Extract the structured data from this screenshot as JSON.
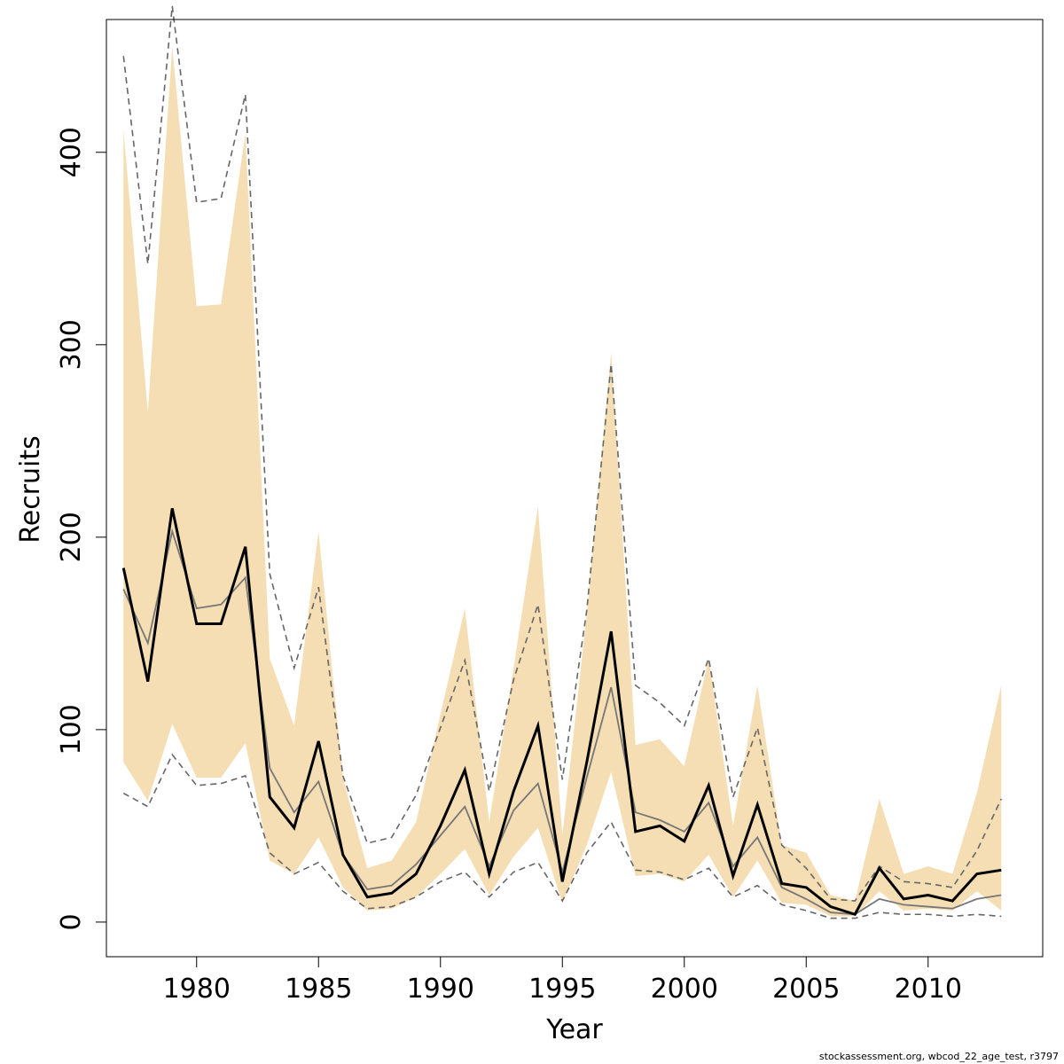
{
  "chart_data": {
    "type": "line",
    "title": "",
    "xlabel": "Year",
    "ylabel": "Recruits",
    "xlim": [
      1976.3,
      2014.7
    ],
    "ylim": [
      -18,
      469
    ],
    "x_ticks": [
      1980,
      1985,
      1990,
      1995,
      2000,
      2005,
      2010
    ],
    "y_ticks": [
      0,
      100,
      200,
      300,
      400
    ],
    "colors": {
      "band": "#f5deb3",
      "main": "#000000",
      "alt": "#777777",
      "dashed": "#666666"
    },
    "x": [
      1977,
      1978,
      1979,
      1980,
      1981,
      1982,
      1983,
      1984,
      1985,
      1986,
      1987,
      1988,
      1989,
      1990,
      1991,
      1992,
      1993,
      1994,
      1995,
      1996,
      1997,
      1998,
      1999,
      2000,
      2001,
      2002,
      2003,
      2004,
      2005,
      2006,
      2007,
      2008,
      2009,
      2010,
      2011,
      2012,
      2013
    ],
    "series": [
      {
        "role": "band_upper",
        "values": [
          412,
          265,
          455,
          320,
          321,
          410,
          137,
          102,
          203,
          75,
          28,
          32,
          52,
          108,
          163,
          52,
          132,
          216,
          45,
          160,
          296,
          92,
          95,
          81,
          137,
          50,
          123,
          40,
          36,
          14,
          11,
          64,
          25,
          29,
          25,
          67,
          123
        ]
      },
      {
        "role": "band_lower",
        "values": [
          83,
          63,
          103,
          75,
          75,
          93,
          32,
          25,
          44,
          18,
          6,
          7,
          13,
          25,
          38,
          14,
          34,
          49,
          10,
          40,
          78,
          24,
          25,
          21,
          35,
          13,
          32,
          10,
          9,
          3,
          3,
          16,
          6,
          7,
          6,
          16,
          6
        ]
      },
      {
        "role": "main",
        "values": [
          184,
          125,
          215,
          155,
          155,
          195,
          65,
          49,
          94,
          35,
          13,
          15,
          25,
          50,
          79,
          25,
          68,
          102,
          21,
          83,
          151,
          47,
          50,
          42,
          71,
          24,
          61,
          20,
          18,
          8,
          4,
          28,
          12,
          14,
          11,
          25,
          27
        ]
      },
      {
        "role": "alt",
        "values": [
          173,
          145,
          203,
          163,
          165,
          179,
          80,
          57,
          73,
          35,
          17,
          19,
          30,
          45,
          60,
          29,
          58,
          72,
          26,
          75,
          122,
          57,
          53,
          47,
          62,
          29,
          44,
          18,
          12,
          5,
          4,
          12,
          9,
          8,
          7,
          12,
          14
        ]
      },
      {
        "role": "dashed_upper",
        "values": [
          450,
          342,
          476,
          374,
          376,
          430,
          181,
          132,
          174,
          76,
          41,
          44,
          66,
          101,
          136,
          68,
          126,
          165,
          74,
          162,
          290,
          123,
          114,
          102,
          137,
          65,
          101,
          40,
          28,
          12,
          11,
          29,
          21,
          20,
          18,
          37,
          64
        ]
      },
      {
        "role": "dashed_lower",
        "values": [
          67,
          60,
          87,
          71,
          72,
          76,
          36,
          25,
          31,
          16,
          7,
          8,
          13,
          21,
          26,
          13,
          26,
          31,
          11,
          36,
          52,
          27,
          26,
          22,
          28,
          13,
          19,
          9,
          6,
          2,
          2,
          5,
          4,
          4,
          3,
          4,
          3
        ]
      }
    ]
  },
  "footer": "stockassessment.org, wbcod_22_age_test, r3797"
}
